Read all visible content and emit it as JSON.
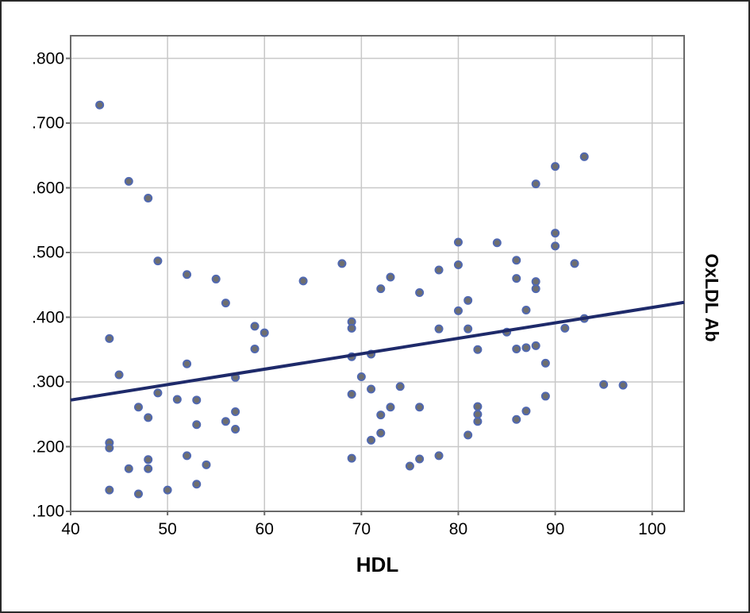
{
  "chart_data": {
    "type": "scatter",
    "title": "",
    "xlabel": "HDL",
    "ylabel": "OxLDL Ab",
    "xlim": [
      40,
      103.3
    ],
    "ylim": [
      0.1,
      0.835
    ],
    "x_ticks": [
      40,
      50,
      60,
      70,
      80,
      90,
      100
    ],
    "y_ticks": [
      0.1,
      0.2,
      0.3,
      0.4,
      0.5,
      0.6,
      0.7,
      0.8
    ],
    "y_tick_labels": [
      ".100",
      ".200",
      ".300",
      ".400",
      ".500",
      ".600",
      ".700",
      ".800"
    ],
    "grid": true,
    "legend_position": "none",
    "marker_style": {
      "fill": "#6e6e6e",
      "stroke": "#5068b0",
      "radius": 4.5,
      "stroke_width": 2
    },
    "grid_color": "#c8c8c8",
    "frame_color": "#6a6a6a",
    "fit_line": {
      "color": "#1e2a6a",
      "width": 4,
      "x1": 40,
      "y1": 0.272,
      "x2": 103.3,
      "y2": 0.423
    },
    "points": [
      [
        43,
        0.728
      ],
      [
        46,
        0.61
      ],
      [
        48,
        0.584
      ],
      [
        49,
        0.487
      ],
      [
        44,
        0.367
      ],
      [
        45,
        0.311
      ],
      [
        52,
        0.466
      ],
      [
        55,
        0.459
      ],
      [
        56,
        0.422
      ],
      [
        52,
        0.328
      ],
      [
        49,
        0.283
      ],
      [
        51,
        0.273
      ],
      [
        47,
        0.261
      ],
      [
        53,
        0.272
      ],
      [
        48,
        0.245
      ],
      [
        53,
        0.234
      ],
      [
        56,
        0.239
      ],
      [
        57,
        0.254
      ],
      [
        57,
        0.227
      ],
      [
        57,
        0.307
      ],
      [
        59,
        0.386
      ],
      [
        60,
        0.376
      ],
      [
        59,
        0.351
      ],
      [
        44,
        0.206
      ],
      [
        44,
        0.198
      ],
      [
        46,
        0.166
      ],
      [
        48,
        0.18
      ],
      [
        48,
        0.166
      ],
      [
        52,
        0.186
      ],
      [
        54,
        0.172
      ],
      [
        53,
        0.142
      ],
      [
        44,
        0.133
      ],
      [
        47,
        0.127
      ],
      [
        50,
        0.133
      ],
      [
        64,
        0.456
      ],
      [
        68,
        0.483
      ],
      [
        73,
        0.462
      ],
      [
        72,
        0.444
      ],
      [
        76,
        0.438
      ],
      [
        78,
        0.473
      ],
      [
        69,
        0.393
      ],
      [
        69,
        0.383
      ],
      [
        69,
        0.339
      ],
      [
        71,
        0.343
      ],
      [
        70,
        0.308
      ],
      [
        71,
        0.289
      ],
      [
        74,
        0.293
      ],
      [
        69,
        0.281
      ],
      [
        73,
        0.261
      ],
      [
        72,
        0.249
      ],
      [
        76,
        0.261
      ],
      [
        71,
        0.21
      ],
      [
        72,
        0.221
      ],
      [
        69,
        0.182
      ],
      [
        75,
        0.17
      ],
      [
        76,
        0.181
      ],
      [
        78,
        0.186
      ],
      [
        80,
        0.516
      ],
      [
        80,
        0.481
      ],
      [
        80,
        0.41
      ],
      [
        81,
        0.426
      ],
      [
        78,
        0.382
      ],
      [
        81,
        0.382
      ],
      [
        82,
        0.35
      ],
      [
        84,
        0.515
      ],
      [
        82,
        0.262
      ],
      [
        82,
        0.25
      ],
      [
        82,
        0.239
      ],
      [
        81,
        0.218
      ],
      [
        85,
        0.377
      ],
      [
        86,
        0.46
      ],
      [
        88,
        0.455
      ],
      [
        88,
        0.444
      ],
      [
        87,
        0.411
      ],
      [
        86,
        0.488
      ],
      [
        88,
        0.606
      ],
      [
        90,
        0.633
      ],
      [
        93,
        0.648
      ],
      [
        90,
        0.53
      ],
      [
        90,
        0.51
      ],
      [
        92,
        0.483
      ],
      [
        91,
        0.383
      ],
      [
        93,
        0.398
      ],
      [
        86,
        0.351
      ],
      [
        87,
        0.353
      ],
      [
        88,
        0.356
      ],
      [
        89,
        0.329
      ],
      [
        89,
        0.278
      ],
      [
        87,
        0.255
      ],
      [
        86,
        0.242
      ],
      [
        95,
        0.296
      ],
      [
        97,
        0.295
      ]
    ]
  }
}
